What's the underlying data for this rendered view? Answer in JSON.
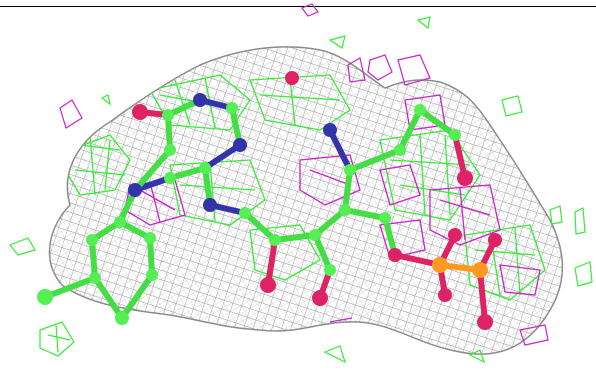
{
  "figure": {
    "subject": "ligand-electron-density-render"
  },
  "colors": {
    "background": "#ffffff",
    "frame_rule": "#000000",
    "density_mesh": "#9a9a9a",
    "positive_difference_mesh": "#33ee33",
    "negative_difference_mesh": "#cc22cc",
    "carbon_atoms": "#44dd44",
    "nitrogen_atoms": "#3333aa",
    "oxygen_atoms": "#dd2266",
    "phosphorus_atoms": "#ff9922"
  }
}
